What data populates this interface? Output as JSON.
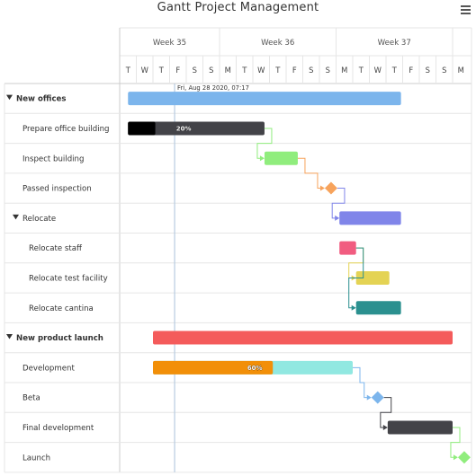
{
  "title": "Gantt Project Management",
  "menu": {
    "icon": "hamburger-menu-icon"
  },
  "weeks": [
    {
      "label": "Week 35",
      "days": [
        "T",
        "W",
        "T",
        "F",
        "S",
        "S"
      ]
    },
    {
      "label": "Week 36",
      "days": [
        "M",
        "T",
        "W",
        "T",
        "F",
        "S",
        "S"
      ]
    },
    {
      "label": "Week 37",
      "days": [
        "M",
        "T",
        "W",
        "T",
        "F",
        "S",
        "S"
      ]
    },
    {
      "label": "",
      "days": [
        "M"
      ]
    }
  ],
  "current_date_label": "Fri, Aug 28 2020, 07:17",
  "tasks": [
    {
      "name": "New offices",
      "level": 0,
      "bold": true,
      "collapse_icon": "triangle-down-icon",
      "start": 0.5,
      "end": 16.9,
      "color": "#7cb5ec",
      "type": "bar"
    },
    {
      "name": "Prepare office building",
      "level": 1,
      "start": 0.5,
      "end": 8.7,
      "color": "#434348",
      "type": "bar",
      "completed": 0.2,
      "completed_label": "20%"
    },
    {
      "name": "Inspect building",
      "level": 1,
      "start": 8.7,
      "end": 10.7,
      "color": "#90ed7d",
      "type": "bar"
    },
    {
      "name": "Passed inspection",
      "level": 1,
      "at": 12.7,
      "color": "#f7a35c",
      "type": "milestone"
    },
    {
      "name": "Relocate",
      "level": 1,
      "collapse_icon": "triangle-down-icon",
      "start": 13.2,
      "end": 16.9,
      "color": "#8085e9",
      "type": "bar"
    },
    {
      "name": "Relocate staff",
      "level": 2,
      "start": 13.2,
      "end": 14.2,
      "color": "#f15c80",
      "type": "bar"
    },
    {
      "name": "Relocate test facility",
      "level": 2,
      "start": 14.2,
      "end": 16.2,
      "color": "#e4d354",
      "type": "bar"
    },
    {
      "name": "Relocate cantina",
      "level": 2,
      "start": 14.2,
      "end": 16.9,
      "color": "#2b908f",
      "type": "bar"
    },
    {
      "name": "New product launch",
      "level": 0,
      "bold": true,
      "collapse_icon": "triangle-down-icon",
      "start": 2.0,
      "end": 20.0,
      "color": "#f45b5b",
      "type": "bar"
    },
    {
      "name": "Development",
      "level": 1,
      "start": 2.0,
      "end": 14.0,
      "color": "#91e8e1",
      "type": "bar",
      "completed": 0.6,
      "completed_color": "#f28f08",
      "completed_label": "60%"
    },
    {
      "name": "Beta",
      "level": 1,
      "at": 15.5,
      "color": "#7cb5ec",
      "type": "milestone"
    },
    {
      "name": "Final development",
      "level": 1,
      "start": 16.1,
      "end": 20.0,
      "color": "#434348",
      "type": "bar"
    },
    {
      "name": "Launch",
      "level": 1,
      "at": 20.7,
      "color": "#90ed7d",
      "type": "milestone"
    }
  ],
  "dependencies": [
    {
      "from": 1,
      "to": 2,
      "color": "#90ed7d"
    },
    {
      "from": 2,
      "to": 3,
      "color": "#f7a35c"
    },
    {
      "from": 3,
      "to": 4,
      "color": "#8085e9"
    },
    {
      "from": 5,
      "to": 6,
      "color": "#e4d354"
    },
    {
      "from": 5,
      "to": 7,
      "color": "#2b908f"
    },
    {
      "from": 9,
      "to": 10,
      "color": "#7cb5ec"
    },
    {
      "from": 10,
      "to": 11,
      "color": "#434348"
    },
    {
      "from": 11,
      "to": 12,
      "color": "#90ed7d"
    }
  ]
}
